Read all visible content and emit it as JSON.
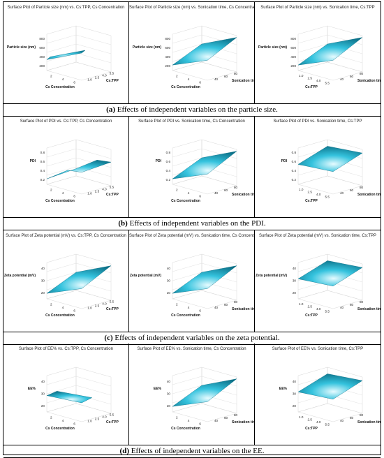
{
  "rows": [
    {
      "panels": [
        {
          "title": "Surface Plot of Particle size (nm) vs. Cs:TPP, Cs Concentration",
          "zlabel": "Particle size (nm)",
          "xlabel": "Cs Concentration",
          "ylabel": "Cs:TPP",
          "zticks": [
            "200",
            "400",
            "600",
            "800"
          ],
          "xticks": [
            "2",
            "4",
            "6"
          ],
          "yticks": [
            "1.0",
            "2.5",
            "4.0",
            "5.5"
          ]
        },
        {
          "title": "Surface Plot of Particle size (nm) vs. Sonication time, Cs Concentration",
          "zlabel": "Particle size (nm)",
          "xlabel": "Cs Concentration",
          "ylabel": "Sonication time",
          "zticks": [
            "200",
            "400",
            "600",
            "800"
          ],
          "xticks": [
            "2",
            "4",
            "6"
          ],
          "yticks": [
            "40",
            "60",
            "80"
          ]
        },
        {
          "title": "Surface Plot of Particle size (nm) vs. Sonication time, Cs:TPP",
          "zlabel": "Particle size (nm)",
          "xlabel": "Cs:TPP",
          "ylabel": "Sonication time",
          "zticks": [
            "200",
            "400",
            "600",
            "800"
          ],
          "xticks": [
            "1.0",
            "2.5",
            "4.0",
            "5.5"
          ],
          "yticks": [
            "40",
            "60",
            "80"
          ]
        }
      ],
      "caption_letter": "(a)",
      "caption_text": " Effects of independent variables on the particle size."
    },
    {
      "panels": [
        {
          "title": "Surface Plot of PDI vs. Cs:TPP, Cs Concentration",
          "zlabel": "PDI",
          "xlabel": "Cs Concentration",
          "ylabel": "Cs:TPP",
          "zticks": [
            "0.2",
            "0.4",
            "0.6",
            "0.8"
          ],
          "xticks": [
            "2",
            "4",
            "6"
          ],
          "yticks": [
            "1.0",
            "2.5",
            "4.0",
            "5.5"
          ]
        },
        {
          "title": "Surface Plot of PDI vs. Sonication time, Cs Concentration",
          "zlabel": "PDI",
          "xlabel": "Cs Concentration",
          "ylabel": "Sonication time",
          "zticks": [
            "0.2",
            "0.4",
            "0.6",
            "0.8"
          ],
          "xticks": [
            "2",
            "4",
            "6"
          ],
          "yticks": [
            "40",
            "60",
            "80"
          ]
        },
        {
          "title": "Surface Plot of PDI vs. Sonication time, Cs:TPP",
          "zlabel": "PDI",
          "xlabel": "Cs:TPP",
          "ylabel": "Sonication time",
          "zticks": [
            "0.2",
            "0.4",
            "0.6",
            "0.8"
          ],
          "xticks": [
            "1.0",
            "2.5",
            "4.0",
            "5.5"
          ],
          "yticks": [
            "40",
            "60",
            "80"
          ]
        }
      ],
      "caption_letter": "(b)",
      "caption_text": " Effects of independent variables on the PDI."
    },
    {
      "panels": [
        {
          "title": "Surface Plot of Zeta potential (mV) vs. Cs:TPP, Cs Concentration",
          "zlabel": "Zeta potential (mV)",
          "xlabel": "Cs Concentration",
          "ylabel": "Cs:TPP",
          "zticks": [
            "20",
            "30",
            "40"
          ],
          "xticks": [
            "2",
            "4",
            "6"
          ],
          "yticks": [
            "1.0",
            "2.5",
            "4.0",
            "5.5"
          ]
        },
        {
          "title": "Surface Plot of Zeta potential (mV) vs. Sonication time, Cs Concentration",
          "zlabel": "Zeta potential (mV)",
          "xlabel": "Cs Concentration",
          "ylabel": "Sonication time",
          "zticks": [
            "20",
            "30",
            "40"
          ],
          "xticks": [
            "2",
            "4",
            "6"
          ],
          "yticks": [
            "40",
            "60",
            "80"
          ]
        },
        {
          "title": "Surface Plot of Zeta potential (mV) vs. Sonication time, Cs:TPP",
          "zlabel": "Zeta potential (mV)",
          "xlabel": "Cs:TPP",
          "ylabel": "Sonication time",
          "zticks": [
            "20",
            "30",
            "40"
          ],
          "xticks": [
            "1.0",
            "2.5",
            "4.0",
            "5.5"
          ],
          "yticks": [
            "40",
            "60",
            "80"
          ]
        }
      ],
      "caption_letter": "(c)",
      "caption_text": " Effects of independent variables on the zeta potential."
    },
    {
      "panels": [
        {
          "title": "Surface Plot of EE% vs. Cs:TPP, Cs Concentration",
          "zlabel": "EE%",
          "xlabel": "Cs Concentration",
          "ylabel": "Cs:TPP",
          "zticks": [
            "20",
            "30",
            "40"
          ],
          "xticks": [
            "2",
            "4",
            "6"
          ],
          "yticks": [
            "1.0",
            "2.5",
            "4.0",
            "5.5"
          ]
        },
        {
          "title": "Surface Plot of EE% vs. Sonication time, Cs Concentration",
          "zlabel": "EE%",
          "xlabel": "Cs Concentration",
          "ylabel": "Sonication time",
          "zticks": [
            "20",
            "30",
            "40"
          ],
          "xticks": [
            "2",
            "4",
            "6"
          ],
          "yticks": [
            "40",
            "60",
            "80"
          ]
        },
        {
          "title": "Surface Plot of EE% vs. Sonication time, Cs:TPP",
          "zlabel": "EE%",
          "xlabel": "Cs:TPP",
          "ylabel": "Sonication time",
          "zticks": [
            "20",
            "30",
            "40"
          ],
          "xticks": [
            "1.0",
            "2.5",
            "4.0",
            "5.5"
          ],
          "yticks": [
            "40",
            "60",
            "80"
          ]
        }
      ],
      "caption_letter": "(d)",
      "caption_text": " Effects of independent variables on the EE."
    }
  ],
  "colors": {
    "surface_light": "#e6fbff",
    "surface_mid": "#35c3de",
    "surface_dark": "#0b6f86",
    "gridline": "#d8d8d8"
  }
}
